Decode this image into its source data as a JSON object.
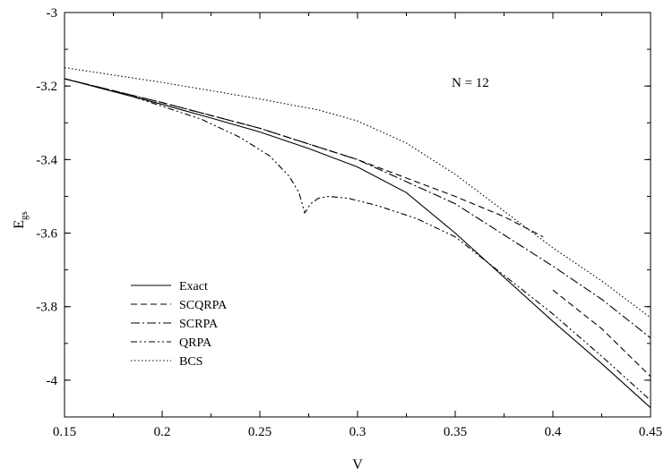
{
  "chart_data": {
    "type": "line",
    "xlabel": "V",
    "ylabel": "E",
    "ylabel_sub": "gs",
    "xlim": [
      0.15,
      0.45
    ],
    "ylim": [
      -4.1,
      -3.0
    ],
    "xticks": [
      "0.15",
      "0.2",
      "0.25",
      "0.3",
      "0.35",
      "0.4",
      "0.45"
    ],
    "yticks": [
      "-3",
      "-3.2",
      "-3.4",
      "-3.6",
      "-3.8",
      "-4"
    ],
    "grid": false,
    "legend_position": "bottom-left",
    "annotation": "N = 12",
    "series": [
      {
        "name": "Exact",
        "dash": "none",
        "points": [
          [
            0.15,
            -3.18
          ],
          [
            0.175,
            -3.215
          ],
          [
            0.2,
            -3.25
          ],
          [
            0.225,
            -3.287
          ],
          [
            0.25,
            -3.325
          ],
          [
            0.275,
            -3.37
          ],
          [
            0.3,
            -3.42
          ],
          [
            0.325,
            -3.49
          ],
          [
            0.35,
            -3.6
          ],
          [
            0.375,
            -3.72
          ],
          [
            0.4,
            -3.84
          ],
          [
            0.425,
            -3.955
          ],
          [
            0.45,
            -4.075
          ]
        ]
      },
      {
        "name": "SCQRPA",
        "dash": "7,4",
        "points": [
          [
            0.15,
            -3.18
          ],
          [
            0.2,
            -3.245
          ],
          [
            0.25,
            -3.315
          ],
          [
            0.3,
            -3.4
          ],
          [
            0.35,
            -3.5
          ],
          [
            0.375,
            -3.555
          ],
          [
            0.395,
            -3.61
          ]
        ],
        "points2": [
          [
            0.4,
            -3.755
          ],
          [
            0.425,
            -3.86
          ],
          [
            0.45,
            -3.99
          ]
        ]
      },
      {
        "name": "SCRPA",
        "dash": "10,3,2,3",
        "points": [
          [
            0.15,
            -3.18
          ],
          [
            0.2,
            -3.245
          ],
          [
            0.25,
            -3.315
          ],
          [
            0.3,
            -3.4
          ],
          [
            0.35,
            -3.52
          ],
          [
            0.4,
            -3.69
          ],
          [
            0.425,
            -3.78
          ],
          [
            0.45,
            -3.885
          ]
        ]
      },
      {
        "name": "QRPA",
        "dash": "7,3,2,3,2,3",
        "points": [
          [
            0.15,
            -3.18
          ],
          [
            0.18,
            -3.22
          ],
          [
            0.2,
            -3.255
          ],
          [
            0.22,
            -3.29
          ],
          [
            0.24,
            -3.34
          ],
          [
            0.255,
            -3.39
          ],
          [
            0.265,
            -3.445
          ],
          [
            0.27,
            -3.49
          ],
          [
            0.273,
            -3.545
          ],
          [
            0.276,
            -3.52
          ],
          [
            0.28,
            -3.505
          ],
          [
            0.285,
            -3.5
          ],
          [
            0.295,
            -3.505
          ],
          [
            0.31,
            -3.525
          ],
          [
            0.33,
            -3.56
          ],
          [
            0.35,
            -3.61
          ],
          [
            0.375,
            -3.715
          ],
          [
            0.4,
            -3.82
          ],
          [
            0.425,
            -3.935
          ],
          [
            0.45,
            -4.055
          ]
        ]
      },
      {
        "name": "BCS",
        "dash": "1.5,2.5",
        "points": [
          [
            0.15,
            -3.15
          ],
          [
            0.2,
            -3.19
          ],
          [
            0.25,
            -3.235
          ],
          [
            0.28,
            -3.265
          ],
          [
            0.3,
            -3.295
          ],
          [
            0.325,
            -3.355
          ],
          [
            0.35,
            -3.44
          ],
          [
            0.375,
            -3.54
          ],
          [
            0.4,
            -3.64
          ],
          [
            0.425,
            -3.73
          ],
          [
            0.45,
            -3.83
          ]
        ]
      }
    ]
  }
}
